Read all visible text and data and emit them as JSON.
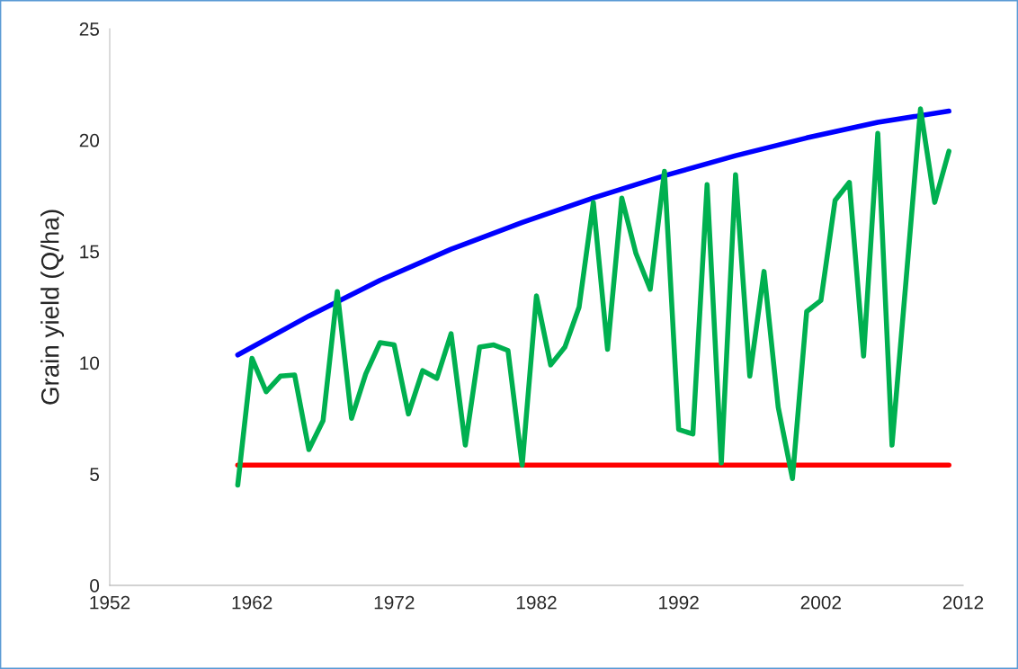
{
  "chart_data": {
    "type": "line",
    "ylabel": "Grain yield (Q/ha)",
    "xlim": [
      1952,
      2012
    ],
    "xticks": [
      1952,
      1962,
      1972,
      1982,
      1992,
      2002,
      2012
    ],
    "ylim": [
      0,
      25
    ],
    "yticks": [
      0,
      5,
      10,
      15,
      20,
      25
    ],
    "grid": false,
    "legend": false,
    "series": [
      {
        "color": "#ff0000",
        "x": [
          1961,
          2011
        ],
        "values": [
          5.4,
          5.4
        ]
      },
      {
        "color": "#0000ff",
        "x": [
          1961,
          1966,
          1971,
          1976,
          1981,
          1986,
          1991,
          1996,
          2001,
          2006,
          2011
        ],
        "values": [
          10.35,
          12.1,
          13.7,
          15.1,
          16.3,
          17.4,
          18.4,
          19.3,
          20.1,
          20.8,
          21.3
        ]
      },
      {
        "color": "#00b050",
        "x": [
          1961,
          1962,
          1963,
          1964,
          1965,
          1966,
          1967,
          1968,
          1969,
          1970,
          1971,
          1972,
          1973,
          1974,
          1975,
          1976,
          1977,
          1978,
          1979,
          1980,
          1981,
          1982,
          1983,
          1984,
          1985,
          1986,
          1987,
          1988,
          1989,
          1990,
          1991,
          1992,
          1993,
          1994,
          1995,
          1996,
          1997,
          1998,
          1999,
          2000,
          2001,
          2002,
          2003,
          2004,
          2005,
          2006,
          2007,
          2008,
          2009,
          2010,
          2011
        ],
        "values": [
          4.5,
          10.2,
          8.7,
          9.4,
          9.45,
          6.1,
          7.4,
          13.2,
          7.5,
          9.5,
          10.9,
          10.8,
          7.7,
          9.65,
          9.3,
          11.3,
          6.3,
          10.7,
          10.8,
          10.55,
          5.4,
          13.0,
          9.9,
          10.7,
          12.5,
          17.2,
          10.6,
          17.4,
          14.9,
          13.3,
          18.6,
          7.0,
          6.8,
          18.0,
          5.5,
          18.45,
          9.4,
          14.1,
          8.0,
          4.8,
          12.3,
          12.8,
          17.3,
          18.1,
          10.3,
          20.3,
          6.3,
          13.8,
          21.4,
          17.2,
          19.5
        ]
      }
    ]
  }
}
